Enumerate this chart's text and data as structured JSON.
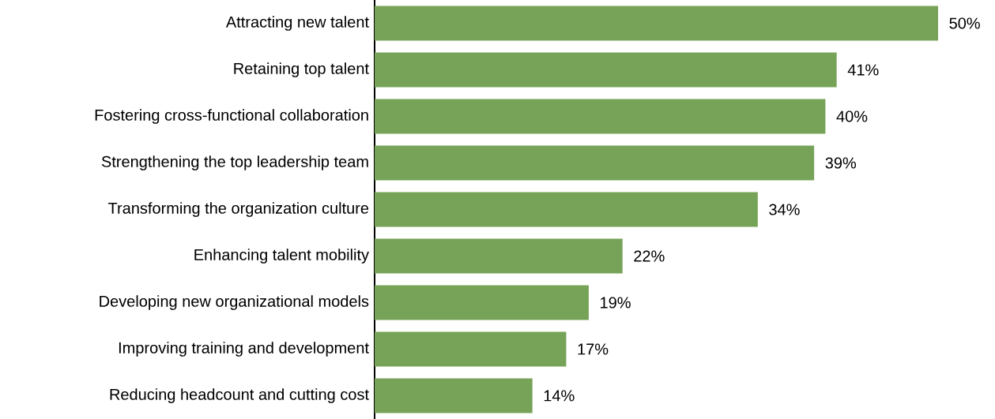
{
  "chart_data": {
    "type": "bar",
    "orientation": "horizontal",
    "color": "#76a358",
    "categories": [
      "Attracting new talent",
      "Retaining top talent",
      "Fostering cross-functional collaboration",
      "Strengthening the top leadership team",
      "Transforming the organization culture",
      "Enhancing talent mobility",
      "Developing new organizational models",
      "Improving training and development",
      "Reducing headcount and cutting cost"
    ],
    "values": [
      50,
      41,
      40,
      39,
      34,
      22,
      19,
      17,
      14
    ],
    "value_labels": [
      "50%",
      "41%",
      "40%",
      "39%",
      "34%",
      "22%",
      "19%",
      "17%",
      "14%"
    ]
  }
}
